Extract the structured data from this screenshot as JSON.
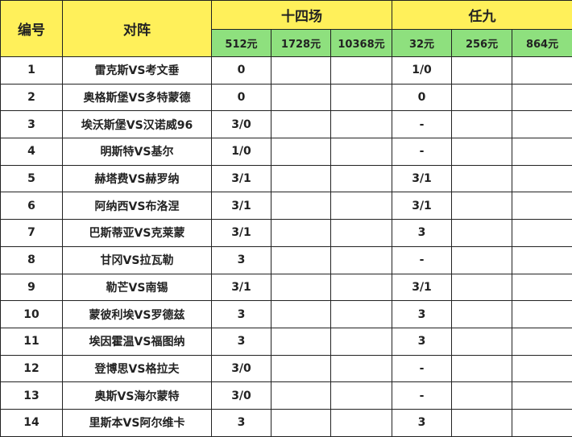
{
  "header": {
    "id_label": "编号",
    "match_label": "对阵",
    "group14_label": "十四场",
    "group9_label": "任九",
    "sub_columns": [
      "512元",
      "1728元",
      "10368元",
      "32元",
      "256元",
      "864元"
    ]
  },
  "colors": {
    "header_yellow": "#fff05a",
    "header_green": "#8ee07e"
  },
  "rows": [
    {
      "id": "1",
      "match": "雷克斯VS考文垂",
      "c512": "0",
      "c1728": "",
      "c10368": "",
      "c32": "1/0",
      "c256": "",
      "c864": ""
    },
    {
      "id": "2",
      "match": "奥格斯堡VS多特蒙德",
      "c512": "0",
      "c1728": "",
      "c10368": "",
      "c32": "0",
      "c256": "",
      "c864": ""
    },
    {
      "id": "3",
      "match": "埃沃斯堡VS汉诺威96",
      "c512": "3/0",
      "c1728": "",
      "c10368": "",
      "c32": "-",
      "c256": "",
      "c864": ""
    },
    {
      "id": "4",
      "match": "明斯特VS基尔",
      "c512": "1/0",
      "c1728": "",
      "c10368": "",
      "c32": "-",
      "c256": "",
      "c864": ""
    },
    {
      "id": "5",
      "match": "赫塔费VS赫罗纳",
      "c512": "3/1",
      "c1728": "",
      "c10368": "",
      "c32": "3/1",
      "c256": "",
      "c864": ""
    },
    {
      "id": "6",
      "match": "阿纳西VS布洛涅",
      "c512": "3/1",
      "c1728": "",
      "c10368": "",
      "c32": "3/1",
      "c256": "",
      "c864": ""
    },
    {
      "id": "7",
      "match": "巴斯蒂亚VS克莱蒙",
      "c512": "3/1",
      "c1728": "",
      "c10368": "",
      "c32": "3",
      "c256": "",
      "c864": ""
    },
    {
      "id": "8",
      "match": "甘冈VS拉瓦勒",
      "c512": "3",
      "c1728": "",
      "c10368": "",
      "c32": "-",
      "c256": "",
      "c864": ""
    },
    {
      "id": "9",
      "match": "勒芒VS南锡",
      "c512": "3/1",
      "c1728": "",
      "c10368": "",
      "c32": "3/1",
      "c256": "",
      "c864": ""
    },
    {
      "id": "10",
      "match": "蒙彼利埃VS罗德兹",
      "c512": "3",
      "c1728": "",
      "c10368": "",
      "c32": "3",
      "c256": "",
      "c864": ""
    },
    {
      "id": "11",
      "match": "埃因霍温VS福图纳",
      "c512": "3",
      "c1728": "",
      "c10368": "",
      "c32": "3",
      "c256": "",
      "c864": ""
    },
    {
      "id": "12",
      "match": "登博思VS格拉夫",
      "c512": "3/0",
      "c1728": "",
      "c10368": "",
      "c32": "-",
      "c256": "",
      "c864": ""
    },
    {
      "id": "13",
      "match": "奥斯VS海尔蒙特",
      "c512": "3/0",
      "c1728": "",
      "c10368": "",
      "c32": "-",
      "c256": "",
      "c864": ""
    },
    {
      "id": "14",
      "match": "里斯本VS阿尔维卡",
      "c512": "3",
      "c1728": "",
      "c10368": "",
      "c32": "3",
      "c256": "",
      "c864": ""
    }
  ]
}
